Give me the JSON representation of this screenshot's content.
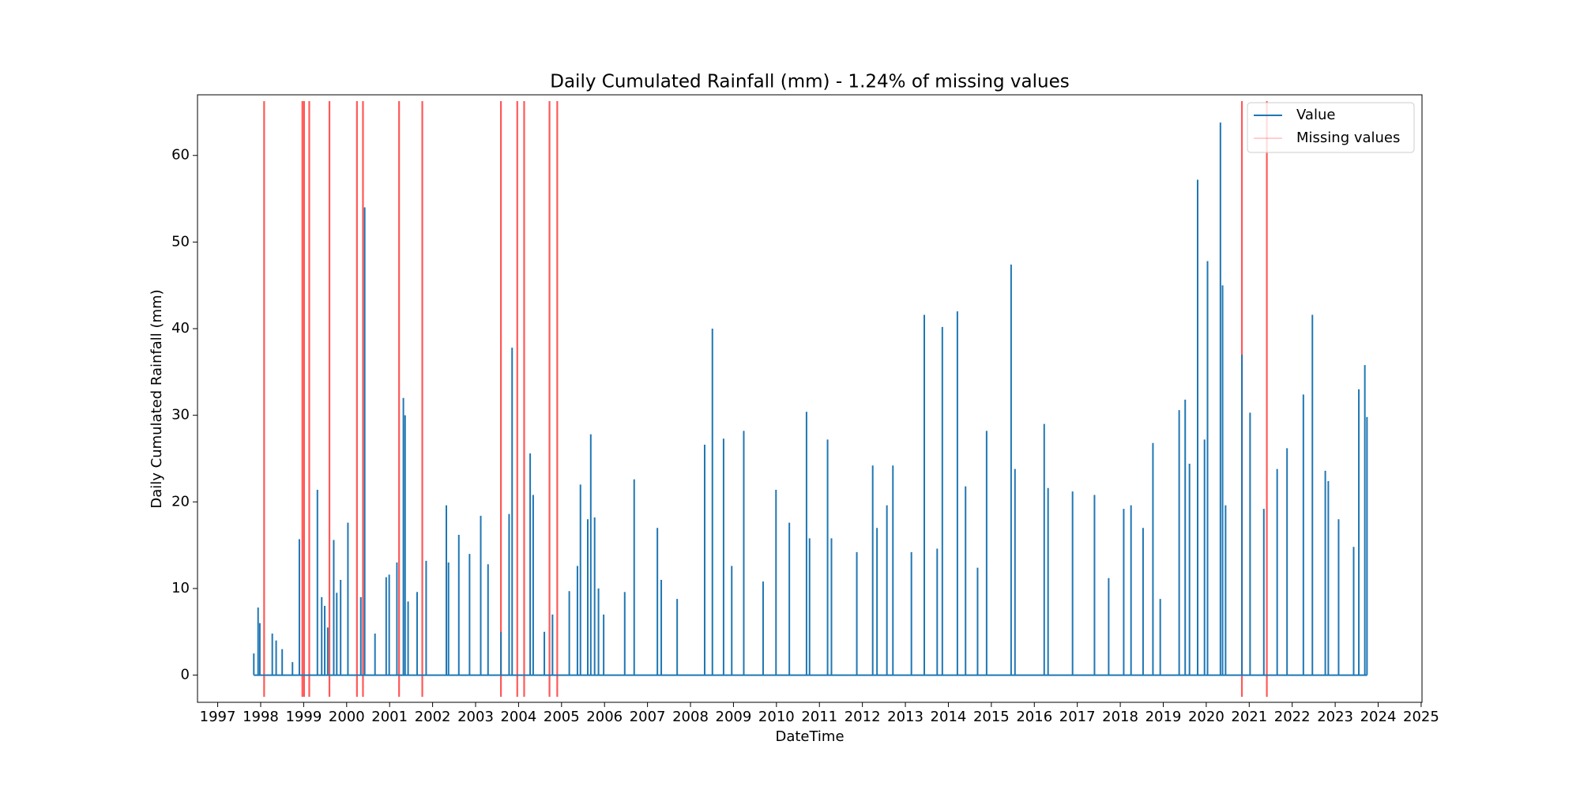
{
  "chart_data": {
    "type": "stem",
    "title": "Daily Cumulated Rainfall (mm) - 1.24% of missing values",
    "xlabel": "DateTime",
    "ylabel": "Daily Cumulated Rainfall (mm)",
    "xlim": [
      1996.53,
      2025.02
    ],
    "ylim": [
      -3.14,
      67
    ],
    "xticks": [
      1997,
      1998,
      1999,
      2000,
      2001,
      2002,
      2003,
      2004,
      2005,
      2006,
      2007,
      2008,
      2009,
      2010,
      2011,
      2012,
      2013,
      2014,
      2015,
      2016,
      2017,
      2018,
      2019,
      2020,
      2021,
      2022,
      2023,
      2024,
      2025
    ],
    "yticks": [
      0,
      10,
      20,
      30,
      40,
      50,
      60
    ],
    "legend": "upper right",
    "series": [
      {
        "name": "Value",
        "color": "#1f77b4",
        "x": [
          1997.84,
          1997.94,
          1997.98,
          1998.27,
          1998.36,
          1998.5,
          1998.74,
          1998.9,
          1999.32,
          1999.42,
          1999.49,
          1999.56,
          1999.7,
          1999.77,
          1999.86,
          2000.03,
          2000.33,
          2000.42,
          2000.66,
          2000.92,
          2000.99,
          2001.17,
          2001.32,
          2001.36,
          2001.43,
          2001.64,
          2001.85,
          2002.32,
          2002.37,
          2002.61,
          2002.86,
          2003.12,
          2003.29,
          2003.59,
          2003.78,
          2003.85,
          2004.27,
          2004.34,
          2004.6,
          2004.79,
          2005.18,
          2005.37,
          2005.44,
          2005.61,
          2005.68,
          2005.77,
          2005.86,
          2005.98,
          2006.47,
          2006.69,
          2007.23,
          2007.32,
          2007.69,
          2008.33,
          2008.51,
          2008.77,
          2008.96,
          2009.24,
          2009.69,
          2009.99,
          2010.3,
          2010.7,
          2010.77,
          2011.19,
          2011.28,
          2011.87,
          2012.24,
          2012.34,
          2012.57,
          2012.71,
          2013.14,
          2013.44,
          2013.74,
          2013.86,
          2014.21,
          2014.4,
          2014.68,
          2014.89,
          2015.46,
          2015.55,
          2016.23,
          2016.32,
          2016.89,
          2017.4,
          2017.73,
          2018.08,
          2018.25,
          2018.53,
          2018.76,
          2018.93,
          2019.37,
          2019.51,
          2019.61,
          2019.8,
          2019.96,
          2020.03,
          2020.33,
          2020.38,
          2020.45,
          2020.83,
          2021.02,
          2021.34,
          2021.65,
          2021.88,
          2022.26,
          2022.47,
          2022.77,
          2022.84,
          2023.08,
          2023.43,
          2023.55,
          2023.69,
          2023.74
        ],
        "values": [
          2.5,
          7.8,
          6,
          4.8,
          4,
          3,
          1.5,
          15.7,
          21.4,
          9,
          8,
          5.5,
          15.6,
          9.5,
          11,
          17.6,
          9,
          54,
          4.8,
          11.3,
          11.6,
          13,
          32,
          30,
          8.5,
          9.6,
          13.2,
          19.6,
          13,
          16.2,
          14,
          18.4,
          12.8,
          5,
          18.6,
          37.8,
          25.6,
          20.8,
          5,
          7,
          9.7,
          12.6,
          22,
          18,
          27.8,
          18.2,
          10,
          7,
          9.6,
          22.6,
          17,
          11,
          8.8,
          26.6,
          40,
          27.3,
          12.6,
          28.2,
          10.8,
          21.4,
          17.6,
          30.4,
          15.8,
          27.2,
          15.8,
          14.2,
          24.2,
          17,
          19.6,
          24.2,
          14.2,
          41.6,
          14.6,
          40.2,
          42,
          21.8,
          12.4,
          28.2,
          47.4,
          23.8,
          29,
          21.6,
          21.2,
          20.8,
          11.2,
          19.2,
          19.6,
          17,
          26.8,
          8.8,
          30.6,
          31.8,
          24.4,
          57.2,
          27.2,
          47.8,
          63.8,
          45,
          19.6,
          37,
          30.3,
          19.2,
          23.8,
          26.2,
          32.4,
          41.6,
          23.6,
          22.4,
          18,
          14.8,
          33,
          35.8,
          29.8
        ]
      }
    ],
    "missing": {
      "name": "Missing values",
      "color": "#ff0000",
      "x": [
        1998.08,
        1998.97,
        1999.01,
        1999.13,
        1999.6,
        2000.24,
        2000.38,
        2001.22,
        2001.76,
        2003.59,
        2003.97,
        2004.13,
        2004.72,
        2004.9,
        2020.83,
        2021.41
      ]
    }
  }
}
